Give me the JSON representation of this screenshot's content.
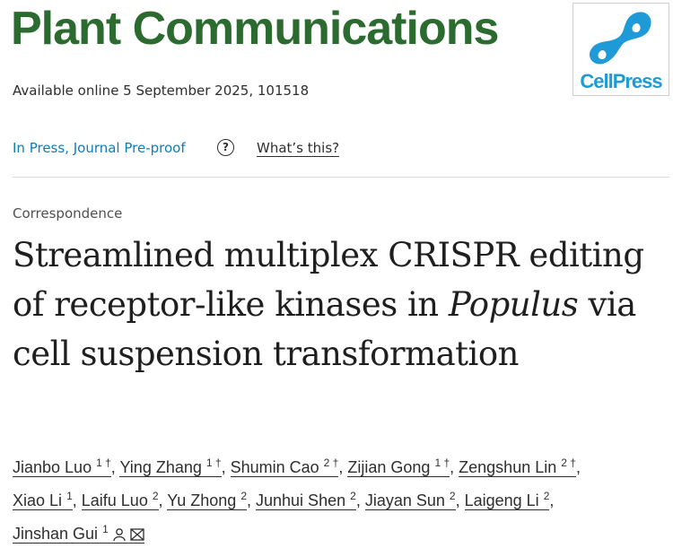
{
  "journal": {
    "name": "Plant Communications",
    "publisher_logo": "CellPress",
    "logo_color": "#1e9ad6",
    "name_color": "#2b6b2f"
  },
  "availability": "Available online 5 September 2025, 101518",
  "status": {
    "label": "In Press, Journal Pre-proof",
    "help_icon": "question-circle-icon",
    "whats_this": "What’s this?"
  },
  "article": {
    "type": "Correspondence",
    "title_part1": "Streamlined multiplex CRISPR editing of receptor-like kinases in ",
    "title_italic": "Populus",
    "title_part2": " via cell suspension transformation"
  },
  "authors": [
    {
      "name": "Jianbo Luo",
      "sup": "1 †"
    },
    {
      "name": "Ying Zhang",
      "sup": "1 †"
    },
    {
      "name": "Shumin Cao",
      "sup": "2 †"
    },
    {
      "name": "Zijian Gong",
      "sup": "1 †"
    },
    {
      "name": "Zengshun Lin",
      "sup": "2 †"
    },
    {
      "name": "Xiao Li",
      "sup": "1"
    },
    {
      "name": "Laifu Luo",
      "sup": "2"
    },
    {
      "name": "Yu Zhong",
      "sup": "2"
    },
    {
      "name": "Junhui Shen",
      "sup": "2"
    },
    {
      "name": "Jiayan Sun",
      "sup": "2"
    },
    {
      "name": "Laigeng Li",
      "sup": "2"
    },
    {
      "name": "Jinshan Gui",
      "sup": "1"
    }
  ]
}
